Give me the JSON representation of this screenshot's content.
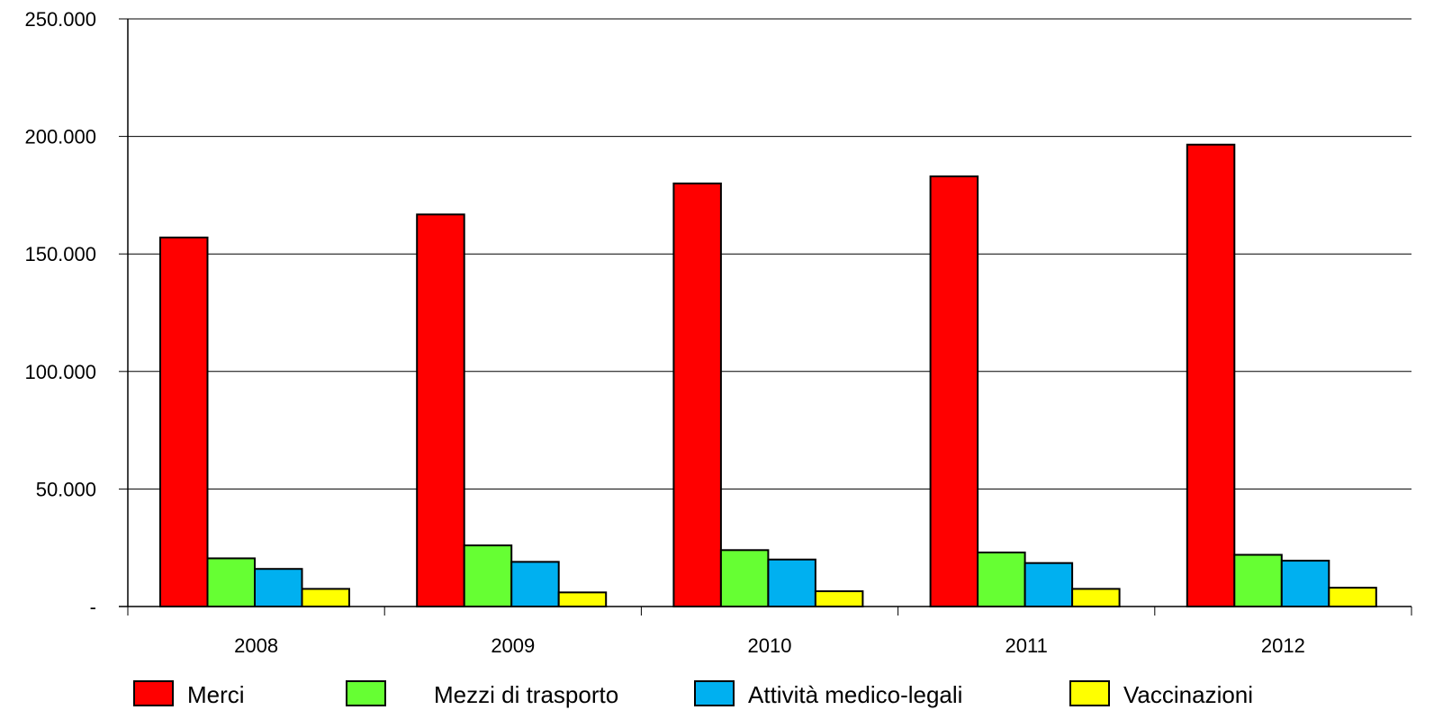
{
  "chart_data": {
    "type": "bar",
    "title": "",
    "xlabel": "",
    "ylabel": "",
    "categories": [
      "2008",
      "2009",
      "2010",
      "2011",
      "2012"
    ],
    "ylim": [
      0,
      250000
    ],
    "yticks": [
      0,
      50000,
      100000,
      150000,
      200000,
      250000
    ],
    "ytick_labels": [
      "-",
      "50.000",
      "100.000",
      "150.000",
      "200.000",
      "250.000"
    ],
    "grid": true,
    "legend_position": "bottom",
    "series": [
      {
        "name": "Merci",
        "color": "#ff0000",
        "values": [
          157000,
          166800,
          180000,
          183000,
          196500
        ]
      },
      {
        "name": "Mezzi di trasporto",
        "color": "#66ff33",
        "values": [
          20500,
          26000,
          24000,
          23000,
          22000
        ]
      },
      {
        "name": "Attività medico-legali",
        "color": "#00b0f0",
        "values": [
          16000,
          19000,
          20000,
          18500,
          19500
        ]
      },
      {
        "name": "Vaccinazioni",
        "color": "#ffff00",
        "values": [
          7500,
          6000,
          6500,
          7500,
          8000
        ]
      }
    ]
  }
}
